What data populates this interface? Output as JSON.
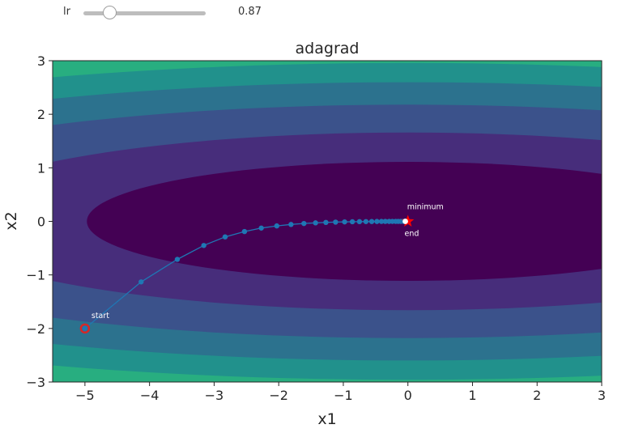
{
  "widget": {
    "label": "lr",
    "value_text": "0.87",
    "value": 0.87,
    "min": 0,
    "max": 4,
    "step": 0.01
  },
  "chart_data": {
    "type": "contour",
    "title": "adagrad",
    "xlabel": "x1",
    "ylabel": "x2",
    "xlim": [
      -5.5,
      3
    ],
    "ylim": [
      -3,
      3
    ],
    "xticks": [
      -5,
      -4,
      -3,
      -2,
      -1,
      0,
      1,
      2,
      3
    ],
    "yticks": [
      -3,
      -2,
      -1,
      0,
      1,
      2,
      3
    ],
    "xtick_labels": [
      "−5",
      "−4",
      "−3",
      "−2",
      "−1",
      "0",
      "1",
      "2",
      "3"
    ],
    "ytick_labels": [
      "−3",
      "−2",
      "−1",
      "0",
      "1",
      "2",
      "3"
    ],
    "colormap": [
      "#440154",
      "#472d7b",
      "#3b528b",
      "#2c728e",
      "#21918c",
      "#28ae80",
      "#5ec962",
      "#addc30"
    ],
    "contour_levels": [
      2.47,
      5.5,
      9.5,
      13.5,
      17.5,
      22.0,
      26.5
    ],
    "function": "0.1*x1^2 + 2*x2^2",
    "path": [
      [
        -5.0,
        -2.0
      ],
      [
        -4.13,
        -1.13
      ],
      [
        -3.57,
        -0.71
      ],
      [
        -3.16,
        -0.45
      ],
      [
        -2.83,
        -0.29
      ],
      [
        -2.53,
        -0.19
      ],
      [
        -2.27,
        -0.125
      ],
      [
        -2.03,
        -0.085
      ],
      [
        -1.81,
        -0.058
      ],
      [
        -1.61,
        -0.04
      ],
      [
        -1.43,
        -0.028
      ],
      [
        -1.27,
        -0.02
      ],
      [
        -1.12,
        -0.014
      ],
      [
        -0.98,
        -0.01
      ],
      [
        -0.86,
        -0.007
      ],
      [
        -0.75,
        -0.005
      ],
      [
        -0.65,
        -0.004
      ],
      [
        -0.56,
        -0.003
      ],
      [
        -0.48,
        -0.002
      ],
      [
        -0.41,
        -0.0015
      ],
      [
        -0.35,
        -0.001
      ],
      [
        -0.29,
        -0.0008
      ],
      [
        -0.24,
        -0.0006
      ],
      [
        -0.19,
        -0.0004
      ],
      [
        -0.15,
        -0.0003
      ],
      [
        -0.11,
        -0.0002
      ],
      [
        -0.07,
        -0.0001
      ],
      [
        -0.04,
        0.0
      ]
    ],
    "path_color": "#1f77b4",
    "start": {
      "x": -5,
      "y": -2,
      "label": "start",
      "color": "#d62728"
    },
    "end": {
      "x": -0.04,
      "y": 0,
      "label": "end"
    },
    "minimum": {
      "x": 0,
      "y": 0,
      "label": "minimum",
      "color": "#ff0000"
    }
  }
}
